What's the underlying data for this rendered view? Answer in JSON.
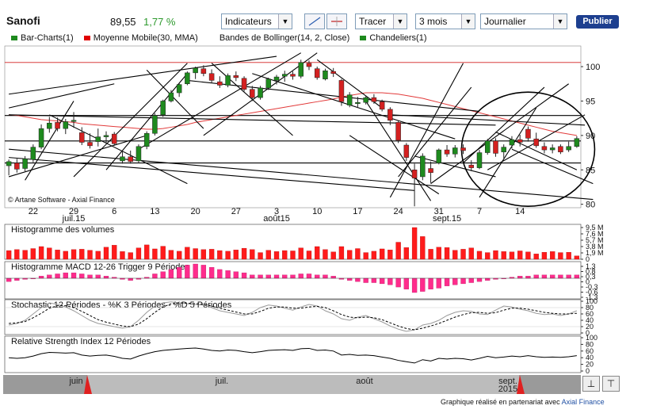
{
  "header": {
    "ticker": "Sanofi",
    "price": "89,55",
    "change": "1,77 %",
    "indicators_label": "Indicateurs",
    "draw_label": "Tracer",
    "period_value": "3 mois",
    "interval_value": "Journalier",
    "publish_label": "Publier"
  },
  "legend": [
    {
      "label": "Bar-Charts(1)",
      "color": "#1e8a1e"
    },
    {
      "label": "Moyenne Mobile(30, MMA)",
      "color": "#e00000"
    },
    {
      "label": "Bandes de Bollinger(14, 2, Close)",
      "color": ""
    },
    {
      "label": "Chandeliers(1)",
      "color": "#1e8a1e"
    }
  ],
  "copyright": "© Artane Software - Axial Finance",
  "footer": {
    "text": "Graphique réalisé en partenariat avec",
    "link": "Axial Finance"
  },
  "chart_data": [
    {
      "type": "candlestick",
      "name": "price",
      "y_ticks": [
        80,
        85,
        90,
        95,
        100
      ],
      "ylim": [
        79.5,
        103
      ],
      "x_day_labels": [
        "22",
        "29",
        "6",
        "13",
        "20",
        "27",
        "3",
        "10",
        "17",
        "24",
        "31",
        "7",
        "14"
      ],
      "x_month_labels": [
        "juil.15",
        "août15",
        "sept.15"
      ],
      "candles": [
        {
          "o": 85.6,
          "h": 86.5,
          "l": 84.2,
          "c": 86.2
        },
        {
          "o": 86.0,
          "h": 86.6,
          "l": 84.6,
          "c": 85.1
        },
        {
          "o": 85.2,
          "h": 87.0,
          "l": 84.8,
          "c": 86.6
        },
        {
          "o": 86.5,
          "h": 88.7,
          "l": 86.1,
          "c": 88.3
        },
        {
          "o": 88.3,
          "h": 91.6,
          "l": 88.0,
          "c": 91.0
        },
        {
          "o": 91.0,
          "h": 92.7,
          "l": 90.4,
          "c": 91.8
        },
        {
          "o": 91.9,
          "h": 92.6,
          "l": 90.6,
          "c": 91.0
        },
        {
          "o": 91.0,
          "h": 92.4,
          "l": 90.2,
          "c": 92.0
        },
        {
          "o": 92.1,
          "h": 93.4,
          "l": 91.1,
          "c": 92.2
        },
        {
          "o": 90.4,
          "h": 91.2,
          "l": 88.6,
          "c": 89.0
        },
        {
          "o": 89.0,
          "h": 90.3,
          "l": 88.1,
          "c": 88.5
        },
        {
          "o": 89.1,
          "h": 91.0,
          "l": 88.4,
          "c": 89.8
        },
        {
          "o": 89.8,
          "h": 90.6,
          "l": 88.9,
          "c": 90.0
        },
        {
          "o": 90.2,
          "h": 90.5,
          "l": 88.5,
          "c": 88.8
        },
        {
          "o": 86.3,
          "h": 87.9,
          "l": 85.9,
          "c": 86.9
        },
        {
          "o": 86.9,
          "h": 87.8,
          "l": 85.9,
          "c": 86.2
        },
        {
          "o": 86.3,
          "h": 88.7,
          "l": 86.0,
          "c": 88.4
        },
        {
          "o": 88.4,
          "h": 90.6,
          "l": 88.0,
          "c": 90.3
        },
        {
          "o": 90.3,
          "h": 93.2,
          "l": 90.0,
          "c": 92.9
        },
        {
          "o": 93.0,
          "h": 95.2,
          "l": 92.7,
          "c": 95.0
        },
        {
          "o": 95.0,
          "h": 96.6,
          "l": 94.8,
          "c": 96.2
        },
        {
          "o": 96.2,
          "h": 97.6,
          "l": 95.6,
          "c": 97.4
        },
        {
          "o": 97.5,
          "h": 99.3,
          "l": 97.3,
          "c": 99.1
        },
        {
          "o": 99.1,
          "h": 100.0,
          "l": 98.2,
          "c": 99.8
        },
        {
          "o": 99.7,
          "h": 100.2,
          "l": 98.6,
          "c": 99.0
        },
        {
          "o": 99.0,
          "h": 99.6,
          "l": 97.6,
          "c": 98.0
        },
        {
          "o": 97.8,
          "h": 98.6,
          "l": 96.9,
          "c": 97.3
        },
        {
          "o": 97.3,
          "h": 99.0,
          "l": 97.0,
          "c": 98.7
        },
        {
          "o": 98.7,
          "h": 99.3,
          "l": 97.9,
          "c": 98.4
        },
        {
          "o": 98.3,
          "h": 98.6,
          "l": 96.4,
          "c": 96.7
        },
        {
          "o": 96.7,
          "h": 97.2,
          "l": 95.0,
          "c": 95.5
        },
        {
          "o": 95.5,
          "h": 97.2,
          "l": 95.2,
          "c": 96.9
        },
        {
          "o": 96.9,
          "h": 98.4,
          "l": 96.6,
          "c": 98.2
        },
        {
          "o": 98.0,
          "h": 98.8,
          "l": 97.4,
          "c": 98.5
        },
        {
          "o": 98.6,
          "h": 99.4,
          "l": 97.8,
          "c": 98.9
        },
        {
          "o": 98.9,
          "h": 99.3,
          "l": 98.1,
          "c": 98.6
        },
        {
          "o": 98.6,
          "h": 101.0,
          "l": 98.3,
          "c": 100.6
        },
        {
          "o": 100.5,
          "h": 100.9,
          "l": 99.5,
          "c": 100.0
        },
        {
          "o": 99.7,
          "h": 100.0,
          "l": 98.1,
          "c": 98.4
        },
        {
          "o": 98.2,
          "h": 99.7,
          "l": 98.0,
          "c": 99.4
        },
        {
          "o": 99.3,
          "h": 99.8,
          "l": 98.5,
          "c": 99.0
        },
        {
          "o": 98.0,
          "h": 98.2,
          "l": 94.3,
          "c": 94.9
        },
        {
          "o": 94.4,
          "h": 96.3,
          "l": 94.1,
          "c": 95.9
        },
        {
          "o": 94.7,
          "h": 95.6,
          "l": 94.0,
          "c": 94.8
        },
        {
          "o": 94.8,
          "h": 95.8,
          "l": 94.5,
          "c": 95.5
        },
        {
          "o": 95.5,
          "h": 96.0,
          "l": 94.6,
          "c": 94.9
        },
        {
          "o": 94.9,
          "h": 95.2,
          "l": 93.5,
          "c": 93.8
        },
        {
          "o": 93.8,
          "h": 94.1,
          "l": 91.5,
          "c": 92.2
        },
        {
          "o": 91.9,
          "h": 92.1,
          "l": 88.9,
          "c": 89.3
        },
        {
          "o": 88.6,
          "h": 88.9,
          "l": 86.3,
          "c": 86.8
        },
        {
          "o": 85.0,
          "h": 85.9,
          "l": 79.7,
          "c": 83.8
        },
        {
          "o": 84.0,
          "h": 87.4,
          "l": 83.5,
          "c": 87.0
        },
        {
          "o": 85.2,
          "h": 86.2,
          "l": 83.1,
          "c": 84.6
        },
        {
          "o": 86.0,
          "h": 88.1,
          "l": 85.8,
          "c": 87.9
        },
        {
          "o": 87.9,
          "h": 88.6,
          "l": 86.9,
          "c": 87.3
        },
        {
          "o": 87.3,
          "h": 88.6,
          "l": 86.8,
          "c": 88.2
        },
        {
          "o": 88.2,
          "h": 88.7,
          "l": 87.3,
          "c": 87.8
        },
        {
          "o": 85.7,
          "h": 86.4,
          "l": 84.8,
          "c": 85.3
        },
        {
          "o": 85.3,
          "h": 87.9,
          "l": 85.1,
          "c": 87.5
        },
        {
          "o": 87.5,
          "h": 89.5,
          "l": 87.2,
          "c": 89.2
        },
        {
          "o": 89.2,
          "h": 89.6,
          "l": 86.9,
          "c": 87.4
        },
        {
          "o": 87.6,
          "h": 88.7,
          "l": 86.7,
          "c": 88.3
        },
        {
          "o": 88.6,
          "h": 89.9,
          "l": 88.1,
          "c": 89.4
        },
        {
          "o": 89.4,
          "h": 90.1,
          "l": 88.4,
          "c": 89.0
        },
        {
          "o": 90.9,
          "h": 91.3,
          "l": 89.1,
          "c": 89.6
        },
        {
          "o": 89.5,
          "h": 90.4,
          "l": 88.2,
          "c": 88.5
        },
        {
          "o": 88.4,
          "h": 89.0,
          "l": 87.4,
          "c": 87.9
        },
        {
          "o": 87.9,
          "h": 88.7,
          "l": 87.4,
          "c": 88.2
        },
        {
          "o": 88.4,
          "h": 88.7,
          "l": 87.3,
          "c": 87.6
        },
        {
          "o": 87.9,
          "h": 89.1,
          "l": 87.6,
          "c": 88.4
        },
        {
          "o": 88.4,
          "h": 89.9,
          "l": 88.2,
          "c": 89.55
        }
      ],
      "moving_average": [
        93.0,
        92.9,
        92.7,
        92.5,
        92.3,
        92.2,
        92.1,
        92.0,
        91.9,
        91.7,
        91.6,
        91.5,
        91.4,
        91.3,
        91.2,
        91.1,
        91.0,
        90.9,
        90.9,
        91.0,
        91.2,
        91.4,
        91.6,
        91.9,
        92.1,
        92.3,
        92.5,
        92.7,
        92.9,
        93.1,
        93.3,
        93.5,
        93.7,
        93.9,
        94.1,
        94.3,
        94.5,
        94.7,
        94.9,
        95.1,
        95.3,
        95.6,
        95.8,
        96.0,
        96.2,
        96.2,
        96.2,
        96.1,
        96.0,
        95.8,
        95.6,
        95.4,
        95.1,
        94.8,
        94.5,
        94.2,
        93.9,
        93.6,
        93.3,
        93.0,
        92.7,
        92.4,
        92.1,
        91.8,
        91.5,
        91.2,
        90.9,
        90.6,
        90.4,
        90.2,
        90.0
      ],
      "horizontal_levels": [
        89.2,
        86.0,
        100.6,
        92.9
      ]
    },
    {
      "type": "bar",
      "name": "Histogramme des volumes",
      "y_ticks": [
        "0",
        "1,9 M",
        "3,8 M",
        "5,7 M",
        "7,6 M",
        "9,5 M"
      ],
      "ylim": [
        0,
        9.5
      ],
      "values": [
        2.6,
        2.9,
        2.7,
        3.2,
        3.8,
        3.4,
        2.8,
        2.4,
        2.9,
        3.0,
        2.7,
        2.4,
        3.6,
        4.2,
        2.3,
        2.0,
        3.4,
        4.3,
        3.1,
        3.9,
        2.7,
        2.4,
        3.6,
        3.2,
        2.9,
        3.0,
        2.6,
        2.4,
        2.8,
        3.3,
        2.9,
        2.0,
        2.7,
        2.3,
        2.6,
        2.5,
        3.4,
        2.5,
        3.8,
        2.9,
        2.2,
        3.8,
        2.7,
        3.2,
        2.0,
        2.4,
        3.1,
        2.8,
        5.1,
        3.5,
        9.5,
        6.8,
        3.0,
        3.6,
        3.5,
        2.7,
        3.0,
        3.4,
        2.4,
        2.0,
        2.6,
        2.3,
        2.2,
        2.5,
        2.2,
        1.6,
        2.1,
        2.3,
        2.0,
        2.1,
        1.0
      ]
    },
    {
      "type": "bar",
      "name": "Histogramme MACD 12-26",
      "title": "Histogramme MACD 12-26 Trigger 9 Périodes",
      "y_ticks": [
        "1,3",
        "0,8",
        "0,3",
        "0",
        "-0,3",
        "-0,6",
        "-1,3"
      ],
      "ylim": [
        -1.3,
        1.3
      ],
      "values": [
        -0.3,
        -0.2,
        -0.1,
        0.0,
        0.2,
        0.3,
        0.4,
        0.5,
        0.5,
        0.4,
        0.3,
        0.3,
        0.2,
        0.1,
        -0.1,
        -0.2,
        -0.1,
        0.1,
        0.4,
        0.6,
        0.8,
        1.0,
        1.2,
        1.3,
        1.2,
        1.0,
        0.8,
        0.7,
        0.6,
        0.5,
        0.3,
        0.3,
        0.3,
        0.3,
        0.3,
        0.3,
        0.4,
        0.4,
        0.3,
        0.3,
        0.2,
        -0.1,
        -0.2,
        -0.3,
        -0.4,
        -0.4,
        -0.5,
        -0.6,
        -0.8,
        -1.0,
        -1.3,
        -1.2,
        -1.0,
        -0.9,
        -0.7,
        -0.6,
        -0.5,
        -0.4,
        -0.3,
        -0.2,
        -0.1,
        0.0,
        0.1,
        0.2,
        0.2,
        0.3,
        0.3,
        0.3,
        0.3,
        0.3,
        0.3
      ]
    },
    {
      "type": "line",
      "name": "Stochastic 12 Périodes",
      "title": "Stochastic 12 Périodes - %K 3 Périodes - %D 5 Périodes",
      "y_ticks": [
        0,
        20,
        40,
        60,
        80,
        100
      ],
      "ylim": [
        0,
        100
      ],
      "series": [
        {
          "name": "%K 3 Périodes",
          "values": [
            25,
            30,
            40,
            60,
            80,
            95,
            90,
            82,
            70,
            55,
            40,
            30,
            25,
            20,
            15,
            20,
            40,
            65,
            85,
            95,
            98,
            95,
            92,
            90,
            88,
            80,
            70,
            65,
            60,
            55,
            65,
            80,
            88,
            85,
            78,
            72,
            82,
            90,
            85,
            70,
            60,
            45,
            40,
            50,
            55,
            45,
            35,
            22,
            12,
            5,
            10,
            25,
            30,
            40,
            55,
            65,
            70,
            68,
            60,
            58,
            72,
            85,
            82,
            75,
            70,
            62,
            58,
            60,
            55,
            60,
            70
          ]
        },
        {
          "name": "%D 5 Périodes",
          "values": [
            30,
            32,
            36,
            48,
            62,
            78,
            86,
            86,
            80,
            68,
            55,
            42,
            34,
            28,
            22,
            20,
            28,
            45,
            65,
            82,
            92,
            95,
            94,
            92,
            90,
            85,
            78,
            72,
            66,
            60,
            60,
            68,
            78,
            82,
            82,
            78,
            78,
            82,
            84,
            80,
            70,
            58,
            50,
            48,
            50,
            48,
            42,
            32,
            22,
            14,
            10,
            15,
            22,
            30,
            40,
            50,
            58,
            64,
            65,
            62,
            64,
            72,
            78,
            78,
            75,
            70,
            65,
            62,
            60,
            60,
            62
          ]
        }
      ]
    },
    {
      "type": "line",
      "name": "Relative Strength Index 12 Périodes",
      "y_ticks": [
        0,
        20,
        40,
        60,
        80,
        100
      ],
      "ylim": [
        0,
        100
      ],
      "values": [
        40,
        38,
        40,
        45,
        52,
        56,
        55,
        54,
        55,
        48,
        45,
        47,
        48,
        44,
        38,
        36,
        45,
        52,
        58,
        62,
        64,
        66,
        68,
        69,
        66,
        62,
        60,
        63,
        62,
        58,
        55,
        58,
        62,
        63,
        64,
        62,
        67,
        68,
        62,
        63,
        60,
        48,
        50,
        47,
        48,
        46,
        42,
        38,
        32,
        28,
        24,
        34,
        30,
        38,
        36,
        38,
        37,
        33,
        38,
        44,
        40,
        42,
        45,
        43,
        46,
        43,
        41,
        42,
        41,
        43,
        46
      ]
    }
  ],
  "navigator": {
    "month_labels": [
      "juin",
      "juil.",
      "août",
      "sept.",
      "2015"
    ]
  }
}
